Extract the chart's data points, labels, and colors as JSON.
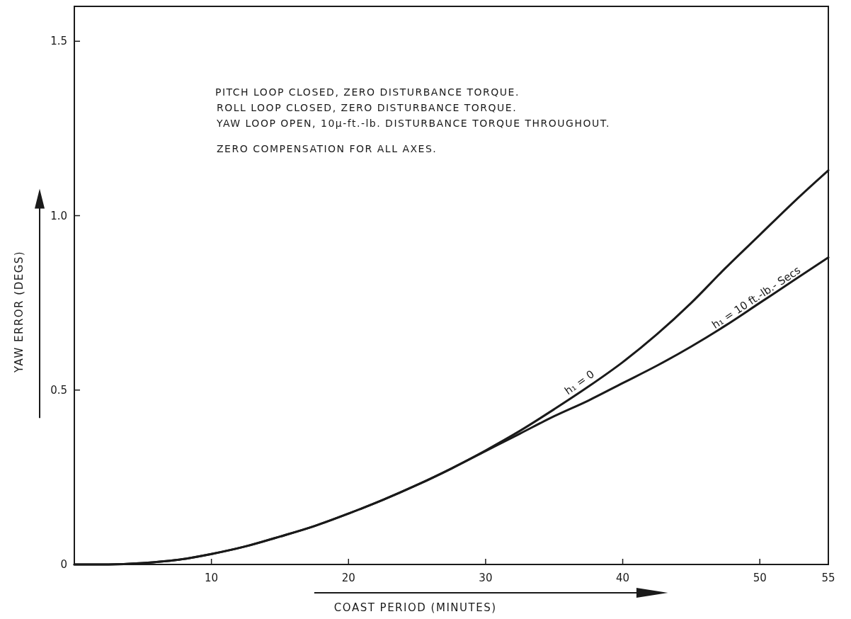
{
  "chart_data": {
    "type": "line",
    "xlabel": "COAST PERIOD (MINUTES)",
    "ylabel": "YAW ERROR (DEGS)",
    "x": [
      0,
      2.5,
      5,
      7.5,
      10,
      12.5,
      15,
      17.5,
      20,
      22.5,
      25,
      27.5,
      30,
      32.5,
      35,
      37.5,
      40,
      42.5,
      45,
      47.5,
      50,
      52.5,
      55
    ],
    "series": [
      {
        "name": "h₁ = 0",
        "color": "#1a1a1a",
        "values": [
          0,
          0,
          0.004,
          0.013,
          0.03,
          0.052,
          0.08,
          0.11,
          0.146,
          0.185,
          0.228,
          0.275,
          0.327,
          0.383,
          0.445,
          0.51,
          0.58,
          0.66,
          0.75,
          0.85,
          0.945,
          1.04,
          1.13
        ]
      },
      {
        "name": "h₁ = 10 ft.-lb.- Secs",
        "color": "#1a1a1a",
        "values": [
          0,
          0,
          0.004,
          0.013,
          0.03,
          0.052,
          0.08,
          0.11,
          0.146,
          0.185,
          0.228,
          0.275,
          0.325,
          0.375,
          0.425,
          0.47,
          0.52,
          0.57,
          0.625,
          0.685,
          0.75,
          0.815,
          0.88
        ]
      }
    ],
    "xlim": [
      0,
      55
    ],
    "xticks": [
      10,
      20,
      30,
      40,
      50,
      55
    ],
    "ylim": [
      0,
      1.6
    ],
    "yticks": [
      0,
      0.5,
      {
        "value": 1,
        "label": "1.0"
      },
      1.5
    ],
    "grid": false,
    "marker": "none",
    "line_style": "solid",
    "annotations": [
      "PITCH LOOP CLOSED, ZERO DISTURBANCE TORQUE.",
      "ROLL LOOP CLOSED, ZERO DISTURBANCE TORQUE.",
      "YAW LOOP OPEN, 10μ-ft.-lb. DISTURBANCE TORQUE THROUGHOUT.",
      "ZERO COMPENSATION FOR ALL AXES."
    ]
  }
}
